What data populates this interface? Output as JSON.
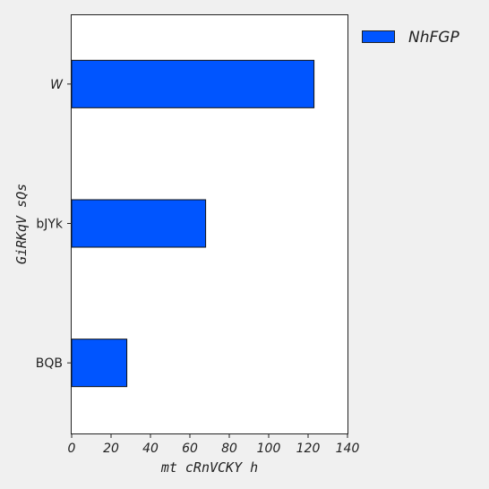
{
  "chart_data": {
    "type": "bar",
    "orientation": "horizontal",
    "categories": [
      "W",
      "bJYk",
      "BQB"
    ],
    "series": [
      {
        "name": "NhFGP",
        "values": [
          123,
          68,
          28
        ],
        "color": "#0055ff"
      }
    ],
    "xlabel": "mt cRnVCKY h",
    "ylabel": "GiRKqV sQs",
    "xlim": [
      0,
      140
    ],
    "xticks": [
      "0",
      "20",
      "40",
      "60",
      "80",
      "100",
      "120",
      "140"
    ],
    "grid": false,
    "legend_position": "outside-top-right"
  }
}
